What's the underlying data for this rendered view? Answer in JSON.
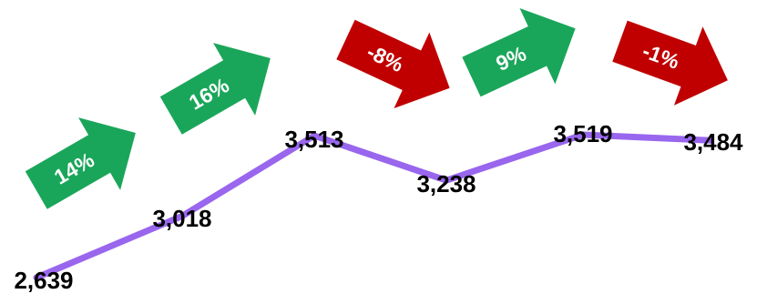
{
  "chart_data": {
    "type": "line",
    "categories": [
      "",
      "",
      "",
      "",
      "",
      ""
    ],
    "series": [
      {
        "values": [
          2639,
          3018,
          3513,
          3238,
          3519,
          3484
        ],
        "color": "#9966ee"
      }
    ],
    "data_labels": [
      "2,639",
      "3,018",
      "3,513",
      "3,238",
      "3,519",
      "3,484"
    ],
    "changes": [
      {
        "label": "14%",
        "direction": "up",
        "color": "#1aa65a"
      },
      {
        "label": "16%",
        "direction": "up",
        "color": "#1aa65a"
      },
      {
        "label": "-8%",
        "direction": "down",
        "color": "#c00000"
      },
      {
        "label": "9%",
        "direction": "up",
        "color": "#1aa65a"
      },
      {
        "label": "-1%",
        "direction": "down",
        "color": "#c00000"
      }
    ],
    "title": "",
    "xlabel": "",
    "ylabel": "",
    "grid": false,
    "legend": "none"
  }
}
